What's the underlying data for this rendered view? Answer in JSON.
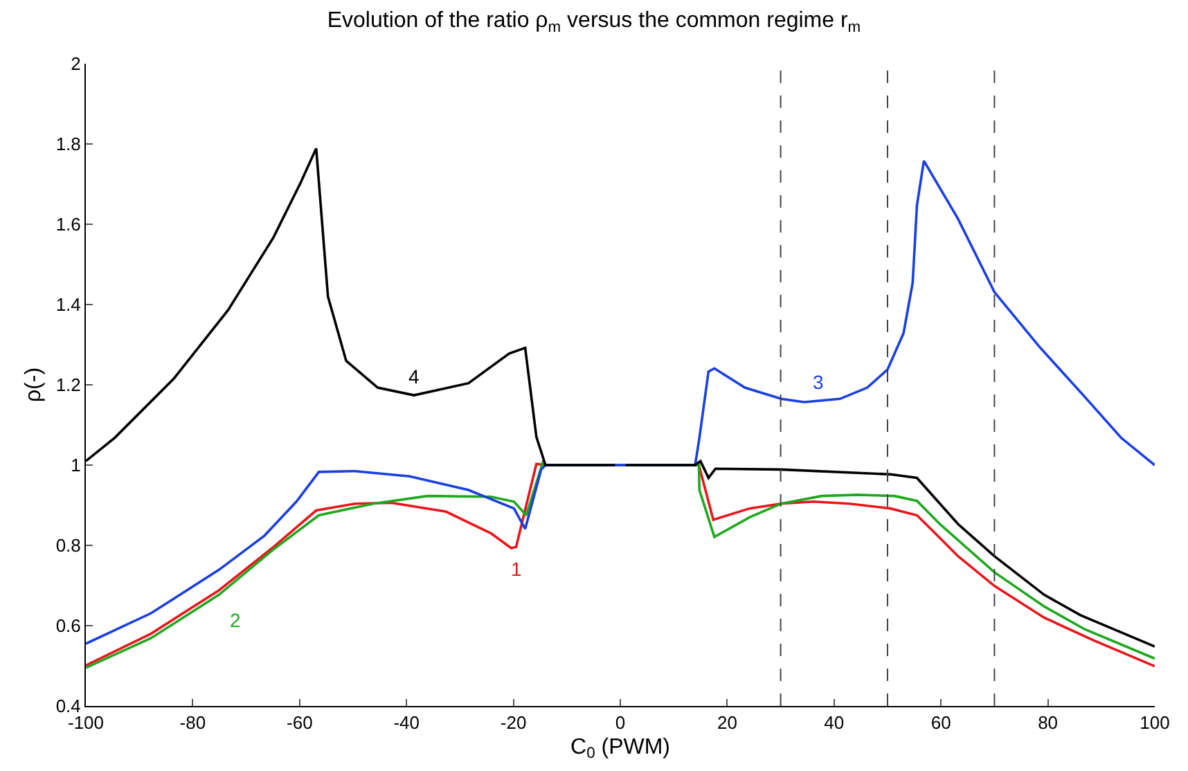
{
  "chart_data": {
    "type": "line",
    "title": "Evolution of the ratio ρ$_{m}$ versus the common regime r$_{m}$",
    "xlabel": "C$_{0}$ (PWM)",
    "ylabel": "ρ(-)",
    "xlim": [
      -100,
      100
    ],
    "xticks": [
      -100,
      -80,
      -60,
      -40,
      -20,
      0,
      20,
      40,
      60,
      80,
      100
    ],
    "ylim": [
      0.4,
      2
    ],
    "yticks": [
      0.4,
      0.6,
      0.8,
      1,
      1.2,
      1.4,
      1.6,
      1.8,
      2
    ],
    "grid": false,
    "legend": false,
    "marker": "none",
    "line_style": "solid",
    "series": [
      {
        "name": "1",
        "color": "#e8161b",
        "x": [
          -100,
          -87.8,
          -75.1,
          -64.9,
          -56.9,
          -49.6,
          -42.8,
          -32.6,
          -24.2,
          -20.4,
          -19.5,
          -15.7,
          -14,
          14.7,
          17.4,
          24.2,
          30.1,
          36.1,
          42.8,
          50.5,
          55.5,
          58.1,
          63.2,
          70,
          79.3,
          88.6,
          100
        ],
        "values": [
          0.501,
          0.58,
          0.688,
          0.796,
          0.887,
          0.904,
          0.906,
          0.884,
          0.83,
          0.793,
          0.796,
          1.003,
          1,
          1,
          0.864,
          0.892,
          0.904,
          0.909,
          0.904,
          0.892,
          0.875,
          0.841,
          0.773,
          0.699,
          0.62,
          0.563,
          0.499
        ]
      },
      {
        "name": "2",
        "color": "#1ea81e",
        "x": [
          -100,
          -87.8,
          -75.1,
          -64.9,
          -56.4,
          -46.2,
          -36.1,
          -24.2,
          -19.9,
          -17.6,
          -14.4,
          -14,
          14.7,
          14.8,
          17.6,
          24.2,
          30.1,
          37.7,
          44.5,
          51.3,
          55.5,
          59.8,
          70,
          79.3,
          86.9,
          100
        ],
        "values": [
          0.495,
          0.569,
          0.677,
          0.79,
          0.875,
          0.904,
          0.923,
          0.921,
          0.909,
          0.875,
          1.011,
          1,
          1,
          0.938,
          0.821,
          0.87,
          0.904,
          0.923,
          0.926,
          0.923,
          0.911,
          0.853,
          0.733,
          0.648,
          0.591,
          0.518
        ]
      },
      {
        "name": "3",
        "color": "#1a3fe0",
        "x": [
          -100,
          -87.8,
          -75.1,
          -66.6,
          -60.6,
          -56.4,
          -49.6,
          -39.4,
          -28.4,
          -19.9,
          -17.8,
          -14.8,
          -14,
          14,
          14.8,
          16.5,
          17.6,
          23.3,
          30.1,
          34.4,
          41.1,
          46.2,
          50,
          53,
          54.7,
          55.5,
          56.8,
          63.2,
          70,
          78.4,
          86.9,
          93.7,
          100
        ],
        "values": [
          0.555,
          0.631,
          0.739,
          0.824,
          0.909,
          0.983,
          0.985,
          0.972,
          0.938,
          0.892,
          0.841,
          0.989,
          1,
          1,
          1.068,
          1.233,
          1.241,
          1.193,
          1.165,
          1.157,
          1.165,
          1.193,
          1.238,
          1.329,
          1.454,
          1.647,
          1.758,
          1.613,
          1.431,
          1.295,
          1.17,
          1.068,
          1
        ]
      },
      {
        "name": "4",
        "color": "#000000",
        "x": [
          -100,
          -94.6,
          -83.5,
          -73.4,
          -64.9,
          -59.8,
          -56.9,
          -54.7,
          -51.3,
          -45.4,
          -38.6,
          -28.4,
          -20.8,
          -17.8,
          -15.7,
          -14,
          -1,
          0,
          1,
          14,
          15,
          16.5,
          17.8,
          30,
          50.5,
          55.5,
          63.2,
          70,
          79.3,
          86.1,
          100
        ],
        "values": [
          1.01,
          1.068,
          1.216,
          1.386,
          1.567,
          1.704,
          1.789,
          1.42,
          1.26,
          1.193,
          1.174,
          1.204,
          1.278,
          1.292,
          1.07,
          1,
          1,
          null,
          1,
          1,
          1.01,
          0.968,
          0.991,
          0.989,
          0.977,
          0.968,
          0.853,
          0.773,
          0.677,
          0.626,
          0.548
        ]
      }
    ],
    "ref_lines": [
      {
        "axis": "x",
        "value": 30,
        "color": "#444444",
        "line_style": "dashed"
      },
      {
        "axis": "x",
        "value": 50,
        "color": "#444444",
        "line_style": "dashed"
      },
      {
        "axis": "x",
        "value": 70,
        "color": "#444444",
        "line_style": "dashed"
      }
    ]
  }
}
